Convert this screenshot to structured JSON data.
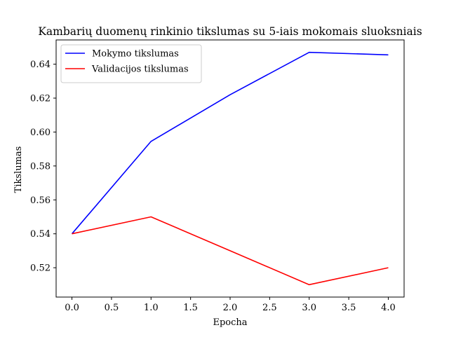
{
  "chart_data": {
    "type": "line",
    "title": "Kambarių duomenų rinkinio tikslumas su 5-iais mokomais sluoksniais",
    "xlabel": "Epocha",
    "ylabel": "Tikslumas",
    "x": [
      0,
      1,
      2,
      3,
      4
    ],
    "xlim": [
      -0.2,
      4.2
    ],
    "ylim": [
      0.5027,
      0.6543
    ],
    "x_ticks": [
      0.0,
      0.5,
      1.0,
      1.5,
      2.0,
      2.5,
      3.0,
      3.5,
      4.0
    ],
    "x_tick_labels": [
      "0.0",
      "0.5",
      "1.0",
      "1.5",
      "2.0",
      "2.5",
      "3.0",
      "3.5",
      "4.0"
    ],
    "y_ticks": [
      0.52,
      0.54,
      0.56,
      0.58,
      0.6,
      0.62,
      0.64
    ],
    "y_tick_labels": [
      "0.52",
      "0.54",
      "0.56",
      "0.58",
      "0.60",
      "0.62",
      "0.64"
    ],
    "grid": false,
    "legend_position": "upper-left",
    "series": [
      {
        "name": "Mokymo tikslumas",
        "color": "#0000ff",
        "values": [
          0.54,
          0.5945,
          0.622,
          0.647,
          0.6455
        ]
      },
      {
        "name": "Validacijos tikslumas",
        "color": "#ff0000",
        "values": [
          0.54,
          0.55,
          0.53,
          0.51,
          0.52
        ]
      }
    ]
  }
}
